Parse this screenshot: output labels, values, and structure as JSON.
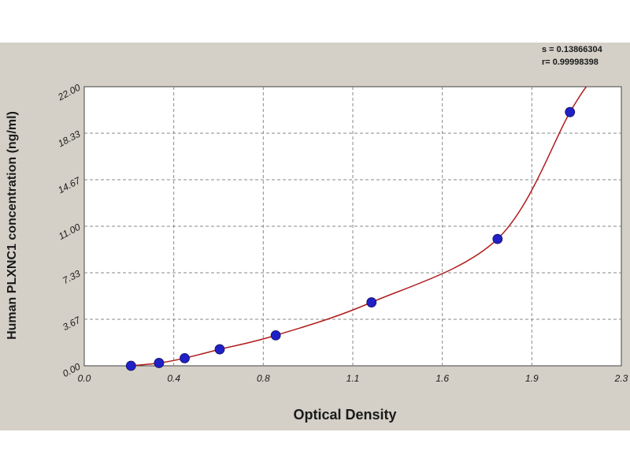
{
  "chart_data": {
    "type": "scatter",
    "xlabel": "Optical Density",
    "ylabel": "Human PLXNC1 concentration (ng/ml)",
    "x_ticks": [
      "0.0",
      "0.4",
      "0.8",
      "1.1",
      "1.6",
      "1.9",
      "2.3"
    ],
    "y_ticks": [
      "0.00",
      "3.67",
      "7.33",
      "11.00",
      "14.67",
      "18.33",
      "22.00"
    ],
    "xlim": [
      0,
      2.3
    ],
    "ylim": [
      0,
      22
    ],
    "grid": true,
    "stats": {
      "s_line": "s = 0.13866304",
      "r_line": "r= 0.99998398"
    },
    "colors": {
      "points": "#2020c8",
      "curve": "#b01c1c",
      "background": "#d4d0c8",
      "plot_area": "#ffffff"
    },
    "series": [
      {
        "values": [
          {
            "x": 0.2,
            "y": 0.0
          },
          {
            "x": 0.32,
            "y": 0.22
          },
          {
            "x": 0.43,
            "y": 0.6
          },
          {
            "x": 0.58,
            "y": 1.3
          },
          {
            "x": 0.82,
            "y": 2.4
          },
          {
            "x": 1.23,
            "y": 5.0
          },
          {
            "x": 1.77,
            "y": 10.0
          },
          {
            "x": 2.08,
            "y": 20.0
          }
        ]
      }
    ]
  }
}
